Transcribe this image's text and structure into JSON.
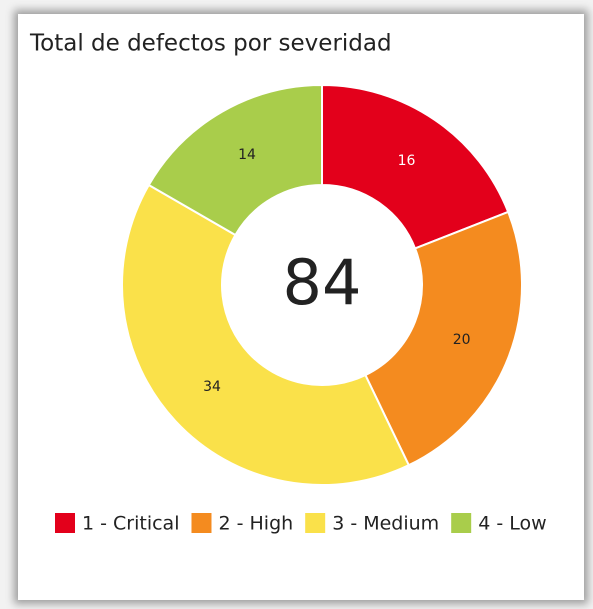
{
  "chart_data": {
    "type": "pie",
    "donut": true,
    "title": "Total de defectos por severidad",
    "total": 84,
    "categories": [
      "1 - Critical",
      "2 - High",
      "3 - Medium",
      "4 - Low"
    ],
    "values": [
      16,
      20,
      34,
      14
    ],
    "colors": [
      "#e3001b",
      "#f48b1f",
      "#fae14a",
      "#a9cd4b"
    ]
  }
}
